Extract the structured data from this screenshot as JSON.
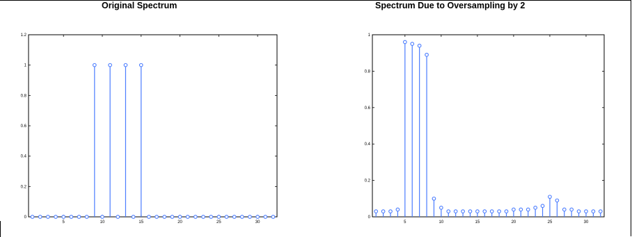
{
  "chart_data": [
    {
      "type": "stem",
      "title": "Original Spectrum",
      "xlabel": "",
      "ylabel": "",
      "xlim": [
        1,
        32
      ],
      "ylim": [
        0,
        1.2
      ],
      "xticks": [
        5,
        10,
        15,
        20,
        25,
        30
      ],
      "yticks": [
        0,
        0.2,
        0.4,
        0.6,
        0.8,
        1,
        1.2
      ],
      "ytick_labels": [
        "0",
        "0.2",
        "0.4",
        "0.6",
        "0.8",
        "1",
        "1.2"
      ],
      "grid": false,
      "x": [
        1,
        2,
        3,
        4,
        5,
        6,
        7,
        8,
        9,
        10,
        11,
        12,
        13,
        14,
        15,
        16,
        17,
        18,
        19,
        20,
        21,
        22,
        23,
        24,
        25,
        26,
        27,
        28,
        29,
        30,
        31,
        32
      ],
      "values": [
        0,
        0,
        0,
        0,
        0,
        0,
        0,
        0,
        1,
        0,
        1,
        0,
        1,
        0,
        1,
        0,
        0,
        0,
        0,
        0,
        0,
        0,
        0,
        0,
        0,
        0,
        0,
        0,
        0,
        0,
        0,
        0
      ],
      "color": "#4a7cff"
    },
    {
      "type": "stem",
      "title": "Spectrum Due to Oversampling by 2",
      "xlabel": "",
      "ylabel": "",
      "xlim": [
        1,
        32
      ],
      "ylim": [
        0,
        1
      ],
      "xticks": [
        5,
        10,
        15,
        20,
        25,
        30
      ],
      "yticks": [
        0,
        0.2,
        0.4,
        0.6,
        0.8,
        1
      ],
      "ytick_labels": [
        "0",
        "0.2",
        "0.4",
        "0.6",
        "0.8",
        "1"
      ],
      "grid": false,
      "x": [
        1,
        2,
        3,
        4,
        5,
        6,
        7,
        8,
        9,
        10,
        11,
        12,
        13,
        14,
        15,
        16,
        17,
        18,
        19,
        20,
        21,
        22,
        23,
        24,
        25,
        26,
        27,
        28,
        29,
        30,
        31,
        32
      ],
      "values": [
        0.03,
        0.03,
        0.03,
        0.04,
        0.96,
        0.95,
        0.94,
        0.89,
        0.1,
        0.05,
        0.03,
        0.03,
        0.03,
        0.03,
        0.03,
        0.03,
        0.03,
        0.03,
        0.03,
        0.04,
        0.04,
        0.04,
        0.05,
        0.06,
        0.11,
        0.09,
        0.04,
        0.04,
        0.03,
        0.03,
        0.03,
        0.03
      ],
      "color": "#4a7cff"
    }
  ]
}
